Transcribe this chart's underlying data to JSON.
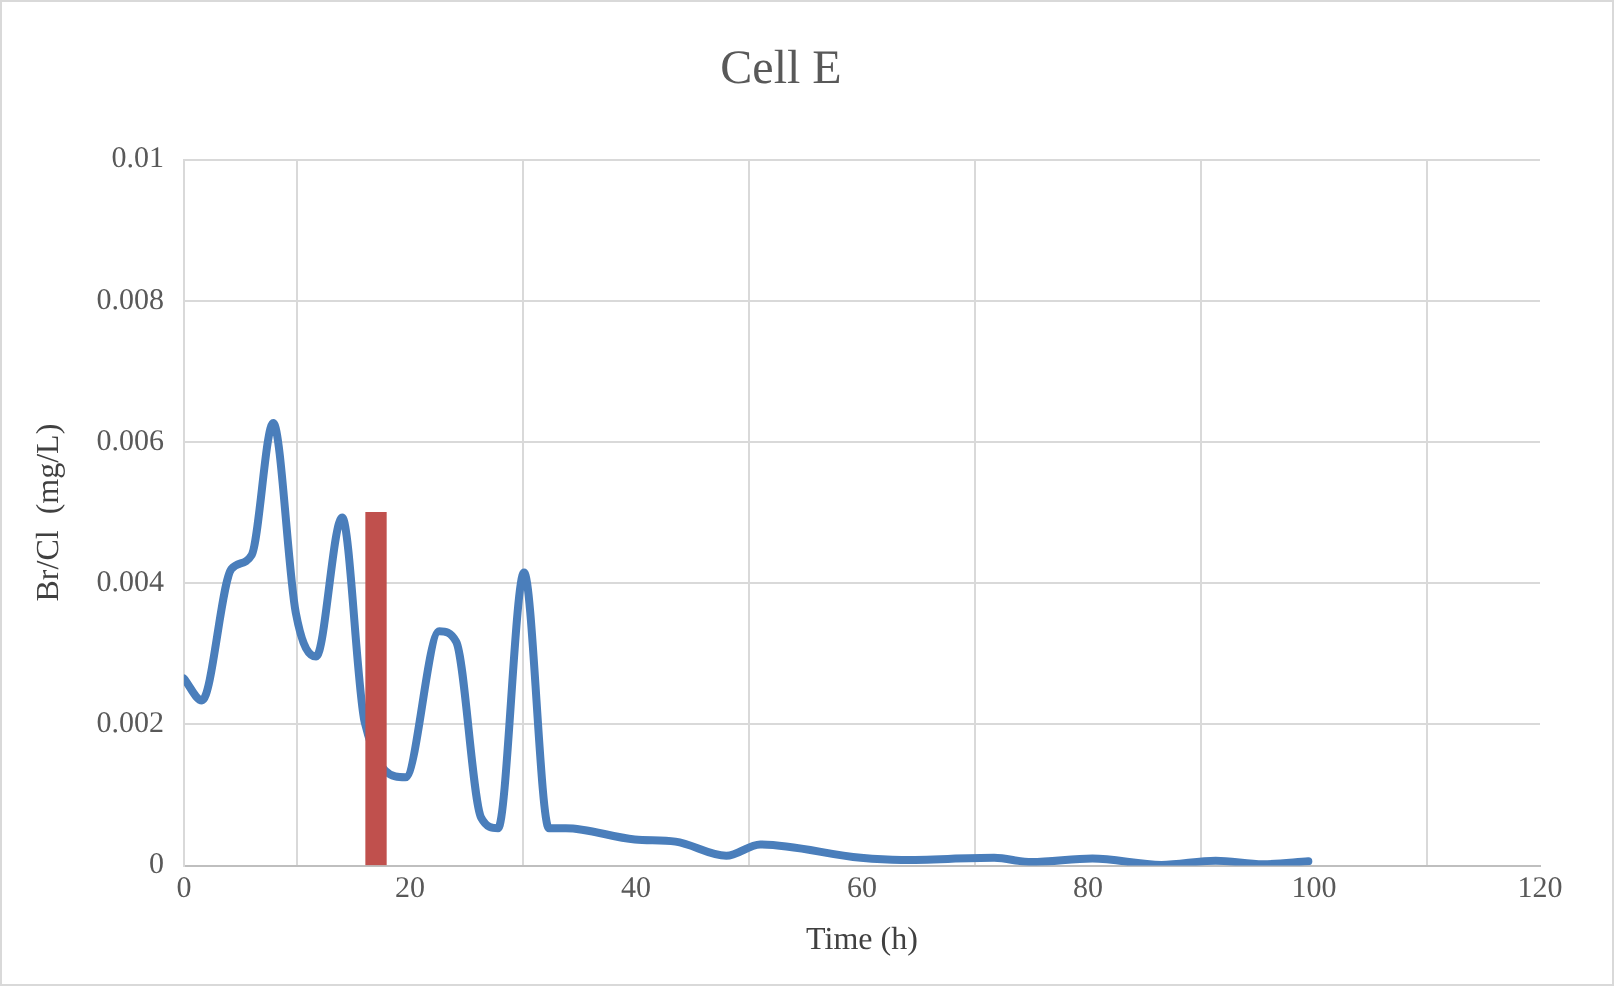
{
  "chart_data": {
    "type": "line",
    "title": "Cell E",
    "xlabel": "Time (h)",
    "ylabel": "Br/Cl  (mg/L)",
    "series": [
      {
        "color": "#4a7ebb",
        "x": [
          0,
          1.6,
          4.2,
          6,
          7.9,
          9.9,
          11.7,
          14,
          16,
          19.6,
          22.6,
          24.1,
          26.3,
          27.8,
          30.1,
          32.3,
          33.8,
          39.9,
          43.5,
          48,
          51,
          59.9,
          63.5,
          71.7,
          75,
          80.4,
          86.5,
          91.3,
          95.5,
          99.5
        ],
        "values": [
          0.00265,
          0.00234,
          0.0042,
          0.0044,
          0.00627,
          0.00358,
          0.00296,
          0.00493,
          0.00203,
          0.00125,
          0.00332,
          0.00317,
          0.00068,
          0.00053,
          0.00415,
          0.00053,
          0.00053,
          0.00037,
          0.00034,
          0.00014,
          0.0003,
          0.00011,
          8e-05,
          0.00011,
          5e-05,
          0.0001,
          1e-05,
          7e-05,
          2e-05,
          6e-05
        ]
      },
      {
        "type": "bar",
        "color": "#c0504d",
        "x": [
          17
        ],
        "values": [
          0.005
        ]
      }
    ],
    "xlim": [
      0,
      120
    ],
    "xticks": [
      0,
      20,
      40,
      60,
      80,
      100,
      120
    ],
    "ylim": [
      0,
      0.01
    ],
    "yticks": [
      0,
      0.002,
      0.004,
      0.006,
      0.008,
      0.01
    ],
    "grid": true,
    "legend": false,
    "marker": "none",
    "line_style": "solid"
  }
}
